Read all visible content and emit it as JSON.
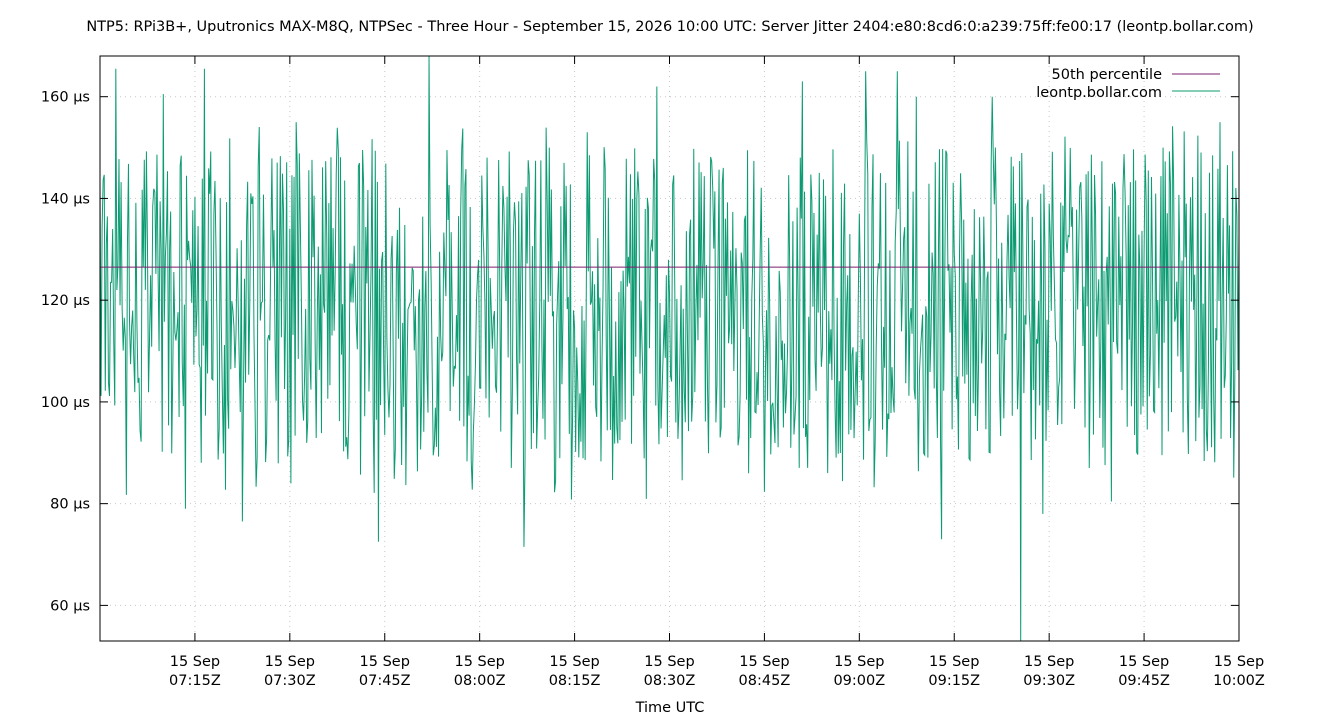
{
  "chart_data": {
    "type": "line",
    "title": "NTP5: RPi3B+, Uputronics MAX-M8Q, NTPSec - Three Hour - September 15, 2026 10:00 UTC: Server Jitter 2404:e80:8cd6:0:a239:75ff:fe00:17 (leontp.bollar.com)",
    "xlabel": "Time UTC",
    "ylabel": "",
    "x_range": [
      "2026-09-15T07:00Z",
      "2026-09-15T10:00Z"
    ],
    "ylim": [
      53,
      168
    ],
    "y_unit": "µs",
    "y_ticks": [
      {
        "value": 60,
        "label": "60 µs"
      },
      {
        "value": 80,
        "label": "80 µs"
      },
      {
        "value": 100,
        "label": "100 µs"
      },
      {
        "value": 120,
        "label": "120 µs"
      },
      {
        "value": 140,
        "label": "140 µs"
      },
      {
        "value": 160,
        "label": "160 µs"
      }
    ],
    "x_ticks": [
      {
        "minute": 15,
        "line1": "15 Sep",
        "line2": "07:15Z"
      },
      {
        "minute": 30,
        "line1": "15 Sep",
        "line2": "07:30Z"
      },
      {
        "minute": 45,
        "line1": "15 Sep",
        "line2": "07:45Z"
      },
      {
        "minute": 60,
        "line1": "15 Sep",
        "line2": "08:00Z"
      },
      {
        "minute": 75,
        "line1": "15 Sep",
        "line2": "08:15Z"
      },
      {
        "minute": 90,
        "line1": "15 Sep",
        "line2": "08:30Z"
      },
      {
        "minute": 105,
        "line1": "15 Sep",
        "line2": "08:45Z"
      },
      {
        "minute": 120,
        "line1": "15 Sep",
        "line2": "09:00Z"
      },
      {
        "minute": 135,
        "line1": "15 Sep",
        "line2": "09:15Z"
      },
      {
        "minute": 150,
        "line1": "15 Sep",
        "line2": "09:30Z"
      },
      {
        "minute": 165,
        "line1": "15 Sep",
        "line2": "09:45Z"
      },
      {
        "minute": 180,
        "line1": "15 Sep",
        "line2": "10:00Z"
      }
    ],
    "grid": true,
    "legend_position": "top-right",
    "series": [
      {
        "name": "50th percentile",
        "kind": "hline",
        "value": 126.5,
        "color": "#7b1f6f"
      },
      {
        "name": "leontp.bollar.com",
        "kind": "line",
        "color": "#0c9b72",
        "points_per_minute": 6,
        "y_min": 53,
        "y_max": 168,
        "median": 126.5,
        "spikes": [
          {
            "minute": 2.5,
            "value": 165.5
          },
          {
            "minute": 10,
            "value": 160.5
          },
          {
            "minute": 16.5,
            "value": 165.5
          },
          {
            "minute": 13.5,
            "value": 79
          },
          {
            "minute": 22.5,
            "value": 76.5
          },
          {
            "minute": 31,
            "value": 155
          },
          {
            "minute": 44,
            "value": 72.5
          },
          {
            "minute": 52,
            "value": 168
          },
          {
            "minute": 67,
            "value": 71.5
          },
          {
            "minute": 71,
            "value": 150
          },
          {
            "minute": 77,
            "value": 153
          },
          {
            "minute": 88,
            "value": 162
          },
          {
            "minute": 111,
            "value": 163
          },
          {
            "minute": 121,
            "value": 165
          },
          {
            "minute": 126,
            "value": 165
          },
          {
            "minute": 129,
            "value": 160
          },
          {
            "minute": 133,
            "value": 73
          },
          {
            "minute": 141,
            "value": 160
          },
          {
            "minute": 145.5,
            "value": 53
          },
          {
            "minute": 149,
            "value": 78
          },
          {
            "minute": 168,
            "value": 150
          },
          {
            "minute": 177,
            "value": 155
          }
        ]
      }
    ]
  }
}
